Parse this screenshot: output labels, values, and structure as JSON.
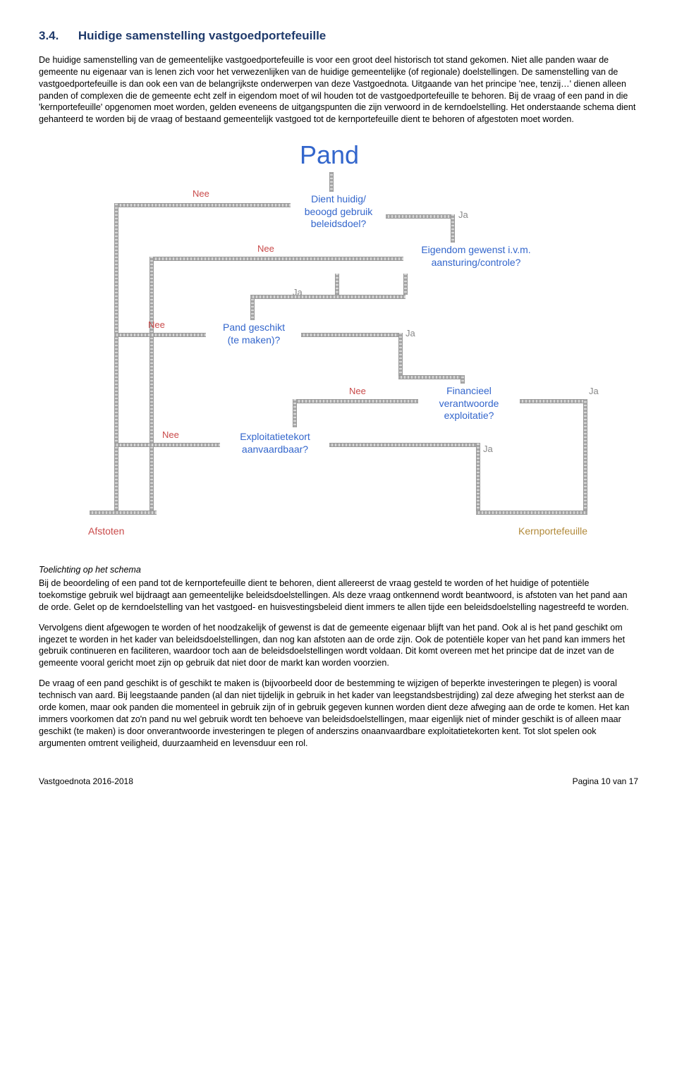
{
  "heading": {
    "number": "3.4.",
    "title": "Huidige samenstelling vastgoedportefeuille"
  },
  "para1": "De huidige samenstelling van de gemeentelijke vastgoedportefeuille is voor een groot deel historisch tot stand gekomen. Niet alle panden waar de gemeente nu eigenaar van is lenen zich voor het verwezenlijken van de huidige gemeentelijke (of regionale) doelstellingen. De samenstelling van de vastgoedportefeuille is dan ook een van de belangrijkste onderwerpen van deze Vastgoednota. Uitgaande van het principe 'nee, tenzij…' dienen alleen panden of complexen die de gemeente echt zelf in eigendom moet of wil houden tot de vastgoedportefeuille te behoren. Bij de vraag of een pand in die 'kernportefeuille' opgenomen moet worden, gelden eveneens de uitgangspunten die zijn verwoord in de kerndoelstelling. Het onderstaande schema dient gehanteerd te worden bij de vraag of bestaand gemeentelijk vastgoed tot de kernportefeuille dient te behoren of afgestoten moet worden.",
  "schema": {
    "title": "Pand",
    "q1": "Dient huidig/\nbeoogd gebruik\nbeleidsdoel?",
    "q2": "Eigendom gewenst i.v.m.\naansturing/controle?",
    "q3": "Pand geschikt\n(te maken)?",
    "q4": "Financieel\nverantwoorde\nexploitatie?",
    "q5": "Exploitatietekort\naanvaardbaar?",
    "nee": "Nee",
    "ja": "Ja",
    "outcome_left": "Afstoten",
    "outcome_right": "Kernportefeuille"
  },
  "subhead": "Toelichting op het schema",
  "para2": "Bij de beoordeling of een pand tot de kernportefeuille dient te behoren, dient allereerst de vraag gesteld te worden of het huidige of potentiële toekomstige gebruik wel bijdraagt aan gemeentelijke beleidsdoelstellingen. Als deze vraag ontkennend wordt beantwoord, is afstoten van het pand aan de orde. Gelet op de kerndoelstelling van het vastgoed- en huisvestingsbeleid dient immers te allen tijde een beleidsdoelstelling nagestreefd te worden.",
  "para3": "Vervolgens dient afgewogen te worden of het noodzakelijk of gewenst is dat de gemeente eigenaar blijft van het pand. Ook al is het pand geschikt om ingezet te worden in het kader van beleidsdoelstellingen, dan nog kan afstoten aan de orde zijn. Ook de potentiële koper van het pand kan immers het gebruik continueren en faciliteren, waardoor toch aan de beleidsdoelstellingen wordt voldaan. Dit komt overeen met het principe dat de inzet van de gemeente vooral gericht moet zijn op gebruik dat niet door de markt kan worden voorzien.",
  "para4": "De vraag of een pand geschikt is of geschikt te maken is (bijvoorbeeld door de bestemming te wijzigen of beperkte investeringen te plegen) is vooral technisch van aard. Bij leegstaande panden (al dan niet tijdelijk in gebruik in het kader van leegstandsbestrijding) zal deze afweging het sterkst aan de orde komen, maar ook panden die momenteel in gebruik zijn of in gebruik gegeven kunnen worden dient deze afweging aan de orde te komen. Het kan immers voorkomen dat zo'n pand nu wel gebruik wordt ten behoeve van beleidsdoelstellingen, maar eigenlijk niet of minder geschikt is of alleen maar geschikt (te maken) is door onverantwoorde investeringen te plegen of anderszins onaanvaardbare exploitatietekorten kent. Tot slot spelen ook argumenten omtrent veiligheid, duurzaamheid en levensduur een rol.",
  "footer": {
    "left": "Vastgoednota 2016-2018",
    "right": "Pagina 10 van 17"
  }
}
